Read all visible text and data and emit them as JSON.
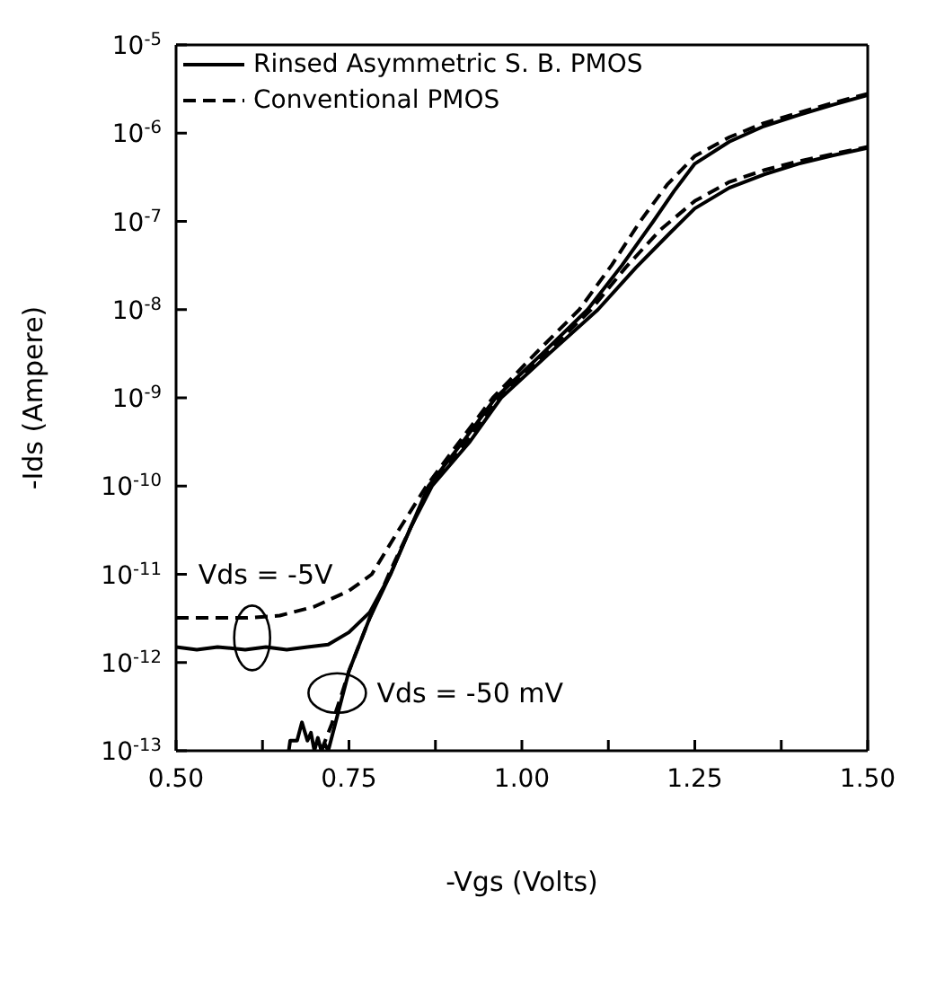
{
  "chart_data": {
    "type": "line",
    "xlabel": "-Vgs (Volts)",
    "ylabel": "-Ids (Ampere)",
    "log": "y",
    "legend": "top left",
    "marker": "none",
    "xlim": [
      0.5,
      1.5
    ],
    "xticks": [
      {
        "value": 0.5,
        "label": "0.50"
      },
      {
        "value": 0.625,
        "label": null
      },
      {
        "value": 0.75,
        "label": "0.75"
      },
      {
        "value": 0.875,
        "label": null
      },
      {
        "value": 1.0,
        "label": "1.00"
      },
      {
        "value": 1.125,
        "label": null
      },
      {
        "value": 1.25,
        "label": "1.25"
      },
      {
        "value": 1.375,
        "label": null
      },
      {
        "value": 1.5,
        "label": "1.50"
      }
    ],
    "ylim": [
      1e-13,
      1e-05
    ],
    "yticks": [
      {
        "value": 1e-13,
        "label": "10$^{-13}$"
      },
      {
        "value": 1e-12,
        "label": "10$^{-12}$"
      },
      {
        "value": 1e-11,
        "label": "10$^{-11}$"
      },
      {
        "value": 1e-10,
        "label": "10$^{-10}$"
      },
      {
        "value": 1e-09,
        "label": "10$^{-9}$"
      },
      {
        "value": 1e-08,
        "label": "10$^{-8}$"
      },
      {
        "value": 1e-07,
        "label": "10$^{-7}$"
      },
      {
        "value": 1e-06,
        "label": "10$^{-6}$"
      },
      {
        "value": 1e-05,
        "label": "10$^{-5}$"
      }
    ],
    "annotations": [
      {
        "text": "Vds = -5V",
        "x": 0.61,
        "y": 1.9e-12
      },
      {
        "text": "Vds = -50 mV",
        "x": 0.733,
        "y": 4.5e-13
      }
    ],
    "series": [
      {
        "name": "Rinsed Asymmetric S. B. PMOS",
        "color": "#000000",
        "line_style": "solid",
        "x": [
          0.5,
          0.53,
          0.56,
          0.6,
          0.63,
          0.66,
          0.69,
          0.72,
          0.75,
          0.78,
          0.81,
          0.84,
          0.865,
          0.915,
          0.962,
          1.03,
          1.095,
          1.145,
          1.19,
          1.22,
          1.25,
          1.3,
          1.35,
          1.4,
          1.45,
          1.5
        ],
        "values": [
          1.5e-12,
          1.4e-12,
          1.5e-12,
          1.4e-12,
          1.5e-12,
          1.4e-12,
          1.5e-12,
          1.6e-12,
          2.2e-12,
          3.7e-12,
          1e-11,
          3.5e-11,
          1e-10,
          3.2e-10,
          1e-09,
          3.2e-09,
          1e-08,
          3.2e-08,
          1e-07,
          2.2e-07,
          4.5e-07,
          8e-07,
          1.2e-06,
          1.6e-06,
          2.1e-06,
          2.7e-06
        ]
      },
      {
        "name": "Conventional PMOS",
        "color": "#000000",
        "line_style": "dashed",
        "x": [
          0.5,
          0.6,
          0.65,
          0.7,
          0.75,
          0.783,
          0.82,
          0.862,
          0.91,
          0.958,
          1.02,
          1.083,
          1.13,
          1.171,
          1.21,
          1.25,
          1.3,
          1.35,
          1.4,
          1.45,
          1.5
        ],
        "values": [
          3.2e-12,
          3.2e-12,
          3.4e-12,
          4.3e-12,
          6.5e-12,
          1e-11,
          3e-11,
          1e-10,
          3.2e-10,
          1e-09,
          3.2e-09,
          1e-08,
          3.2e-08,
          1e-07,
          2.6e-07,
          5.5e-07,
          9e-07,
          1.3e-06,
          1.7e-06,
          2.2e-06,
          2.8e-06
        ]
      },
      {
        "color": "#000000",
        "line_style": "solid",
        "x": [
          0.663,
          0.665,
          0.675,
          0.682,
          0.69,
          0.695,
          0.7,
          0.705,
          0.71,
          0.715,
          0.72,
          0.73,
          0.74,
          0.75,
          0.78,
          0.81,
          0.84,
          0.87,
          0.925,
          0.97,
          1.04,
          1.11,
          1.165,
          1.215,
          1.25,
          1.3,
          1.35,
          1.4,
          1.45,
          1.5
        ],
        "values": [
          1e-13,
          1.3e-13,
          1.3e-13,
          2.1e-13,
          1.3e-13,
          1.6e-13,
          1e-13,
          1.4e-13,
          1e-13,
          1.2e-13,
          1e-13,
          2e-13,
          4e-13,
          8e-13,
          3.2e-12,
          1e-11,
          3.5e-11,
          1e-10,
          3.2e-10,
          1e-09,
          3.2e-09,
          1e-08,
          3e-08,
          7.5e-08,
          1.4e-07,
          2.4e-07,
          3.4e-07,
          4.5e-07,
          5.6e-07,
          6.8e-07
        ]
      },
      {
        "color": "#000000",
        "line_style": "dashed",
        "x": [
          0.71,
          0.725,
          0.74,
          0.75,
          0.78,
          0.81,
          0.84,
          0.868,
          0.92,
          0.966,
          1.035,
          1.1,
          1.15,
          1.2,
          1.25,
          1.3,
          1.35,
          1.4,
          1.45,
          1.5
        ],
        "values": [
          1e-13,
          2e-13,
          4.5e-13,
          8e-13,
          3.2e-12,
          1.1e-11,
          3.5e-11,
          1e-10,
          3.2e-10,
          1e-09,
          3.2e-09,
          1e-08,
          3e-08,
          8e-08,
          1.7e-07,
          2.8e-07,
          3.8e-07,
          4.8e-07,
          5.8e-07,
          7e-07
        ]
      }
    ]
  }
}
